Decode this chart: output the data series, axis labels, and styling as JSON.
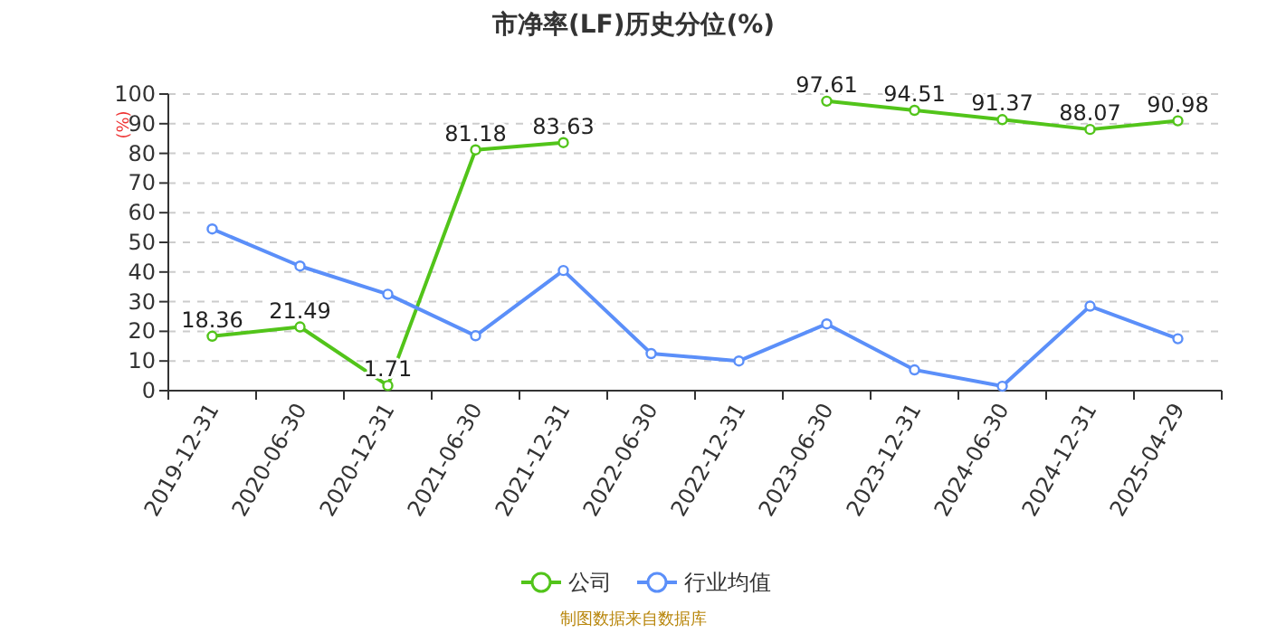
{
  "chart_data": {
    "type": "line",
    "title": "市净率(LF)历史分位(%)",
    "ylabel": "(%)",
    "categories": [
      "2019-12-31",
      "2020-06-30",
      "2020-12-31",
      "2021-06-30",
      "2021-12-31",
      "2022-06-30",
      "2022-12-31",
      "2023-06-30",
      "2023-12-31",
      "2024-06-30",
      "2024-12-31",
      "2025-04-29"
    ],
    "series": [
      {
        "name": "公司",
        "color": "#52c41a",
        "values": [
          18.36,
          21.49,
          1.71,
          81.18,
          83.63,
          null,
          null,
          97.61,
          94.51,
          91.37,
          88.07,
          90.98
        ],
        "value_labels": [
          "18.36",
          "21.49",
          "1.71",
          "81.18",
          "83.63",
          null,
          null,
          "97.61",
          "94.51",
          "91.37",
          "88.07",
          "90.98"
        ]
      },
      {
        "name": "行业均值",
        "color": "#5b8ff9",
        "values": [
          54.5,
          42,
          32.5,
          18.5,
          40.5,
          12.5,
          10,
          22.5,
          7,
          1.5,
          28.5,
          17.5
        ]
      }
    ],
    "ylim": [
      0,
      100
    ],
    "yticks": [
      0,
      10,
      20,
      30,
      40,
      50,
      60,
      70,
      80,
      90,
      100
    ],
    "grid": "y",
    "legend": "bottom",
    "marker": "circle",
    "line_style": "solid",
    "annotations": [
      "制图数据来自数据库"
    ]
  }
}
